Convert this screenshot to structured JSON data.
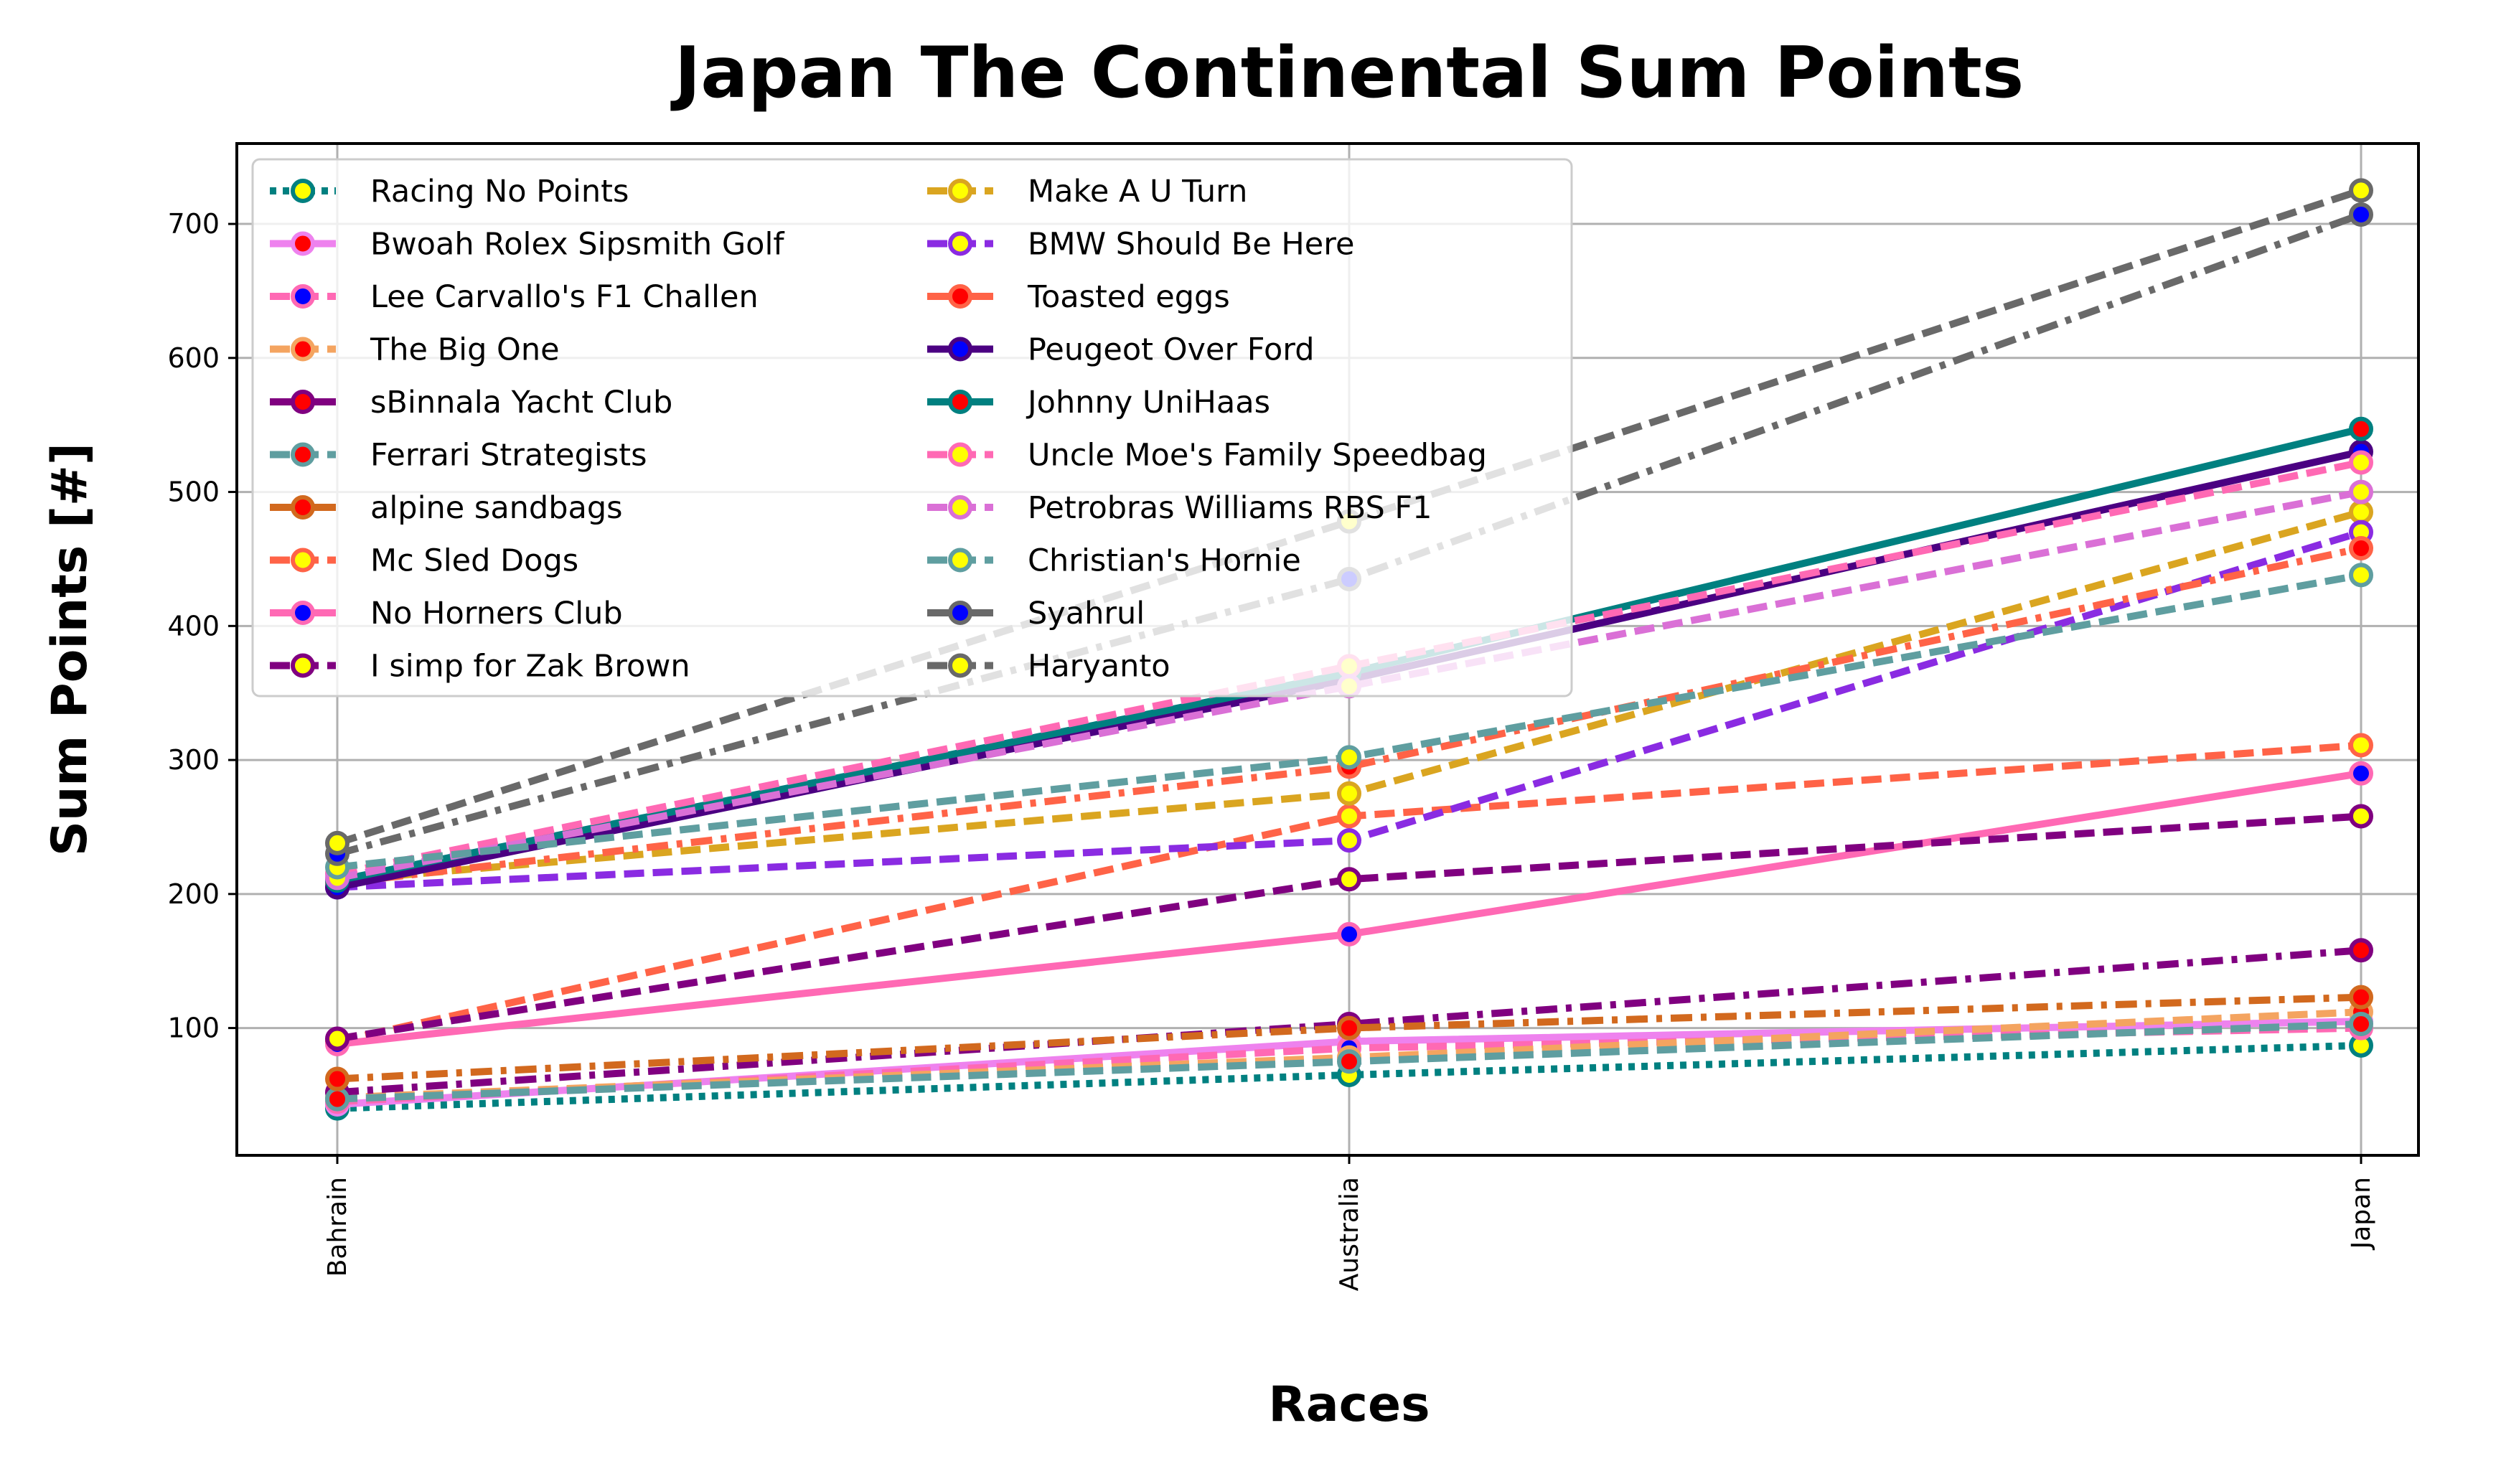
{
  "chart_data": {
    "type": "line",
    "title": "Japan The Continental Sum Points",
    "xlabel": "Races",
    "ylabel": "Sum Points [#]",
    "categories": [
      "Bahrain",
      "Australia",
      "Japan"
    ],
    "ylim": [
      5,
      760
    ],
    "yticks": [
      100,
      200,
      300,
      400,
      500,
      600,
      700
    ],
    "grid": true,
    "legend_position": "upper-left",
    "legend_columns": 2,
    "series": [
      {
        "name": "Racing No Points",
        "values": [
          40,
          65,
          87
        ],
        "color": "#008080",
        "dash": "dotted",
        "marker_face": "#ffff00",
        "marker_edge": "#008080"
      },
      {
        "name": "Bwoah Rolex Sipsmith Golf",
        "values": [
          43,
          90,
          105
        ],
        "color": "#ee82ee",
        "dash": "solid",
        "marker_face": "#ff0000",
        "marker_edge": "#ee82ee"
      },
      {
        "name": "Lee Carvallo's F1 Challen",
        "values": [
          45,
          85,
          100
        ],
        "color": "#ff69b4",
        "dash": "dashed",
        "marker_face": "#0000ff",
        "marker_edge": "#ff69b4"
      },
      {
        "name": "The Big One",
        "values": [
          48,
          78,
          112
        ],
        "color": "#f4a460",
        "dash": "dashed",
        "marker_face": "#ff0000",
        "marker_edge": "#f4a460"
      },
      {
        "name": "sBinnala Yacht Club",
        "values": [
          52,
          103,
          158
        ],
        "color": "#800080",
        "dash": "dashdot",
        "marker_face": "#ff0000",
        "marker_edge": "#800080"
      },
      {
        "name": "Ferrari Strategists",
        "values": [
          47,
          75,
          103
        ],
        "color": "#5f9ea0",
        "dash": "dashed",
        "marker_face": "#ff0000",
        "marker_edge": "#5f9ea0"
      },
      {
        "name": "alpine sandbags",
        "values": [
          62,
          100,
          123
        ],
        "color": "#d2691e",
        "dash": "dashdot",
        "marker_face": "#ff0000",
        "marker_edge": "#d2691e"
      },
      {
        "name": "Mc Sled Dogs",
        "values": [
          90,
          258,
          311
        ],
        "color": "#ff6347",
        "dash": "dashed",
        "marker_face": "#ffff00",
        "marker_edge": "#ff6347"
      },
      {
        "name": "No Horners Club",
        "values": [
          88,
          170,
          290
        ],
        "color": "#ff69b4",
        "dash": "solid",
        "marker_face": "#0000ff",
        "marker_edge": "#ff69b4"
      },
      {
        "name": "I simp for Zak Brown",
        "values": [
          92,
          211,
          258
        ],
        "color": "#800080",
        "dash": "dashed",
        "marker_face": "#ffff00",
        "marker_edge": "#800080"
      },
      {
        "name": "Make A U Turn",
        "values": [
          210,
          275,
          485
        ],
        "color": "#daa520",
        "dash": "dashed",
        "marker_face": "#ffff00",
        "marker_edge": "#daa520"
      },
      {
        "name": "BMW Should Be Here",
        "values": [
          205,
          240,
          470
        ],
        "color": "#8a2be2",
        "dash": "dashed",
        "marker_face": "#ffff00",
        "marker_edge": "#8a2be2"
      },
      {
        "name": "Toasted eggs",
        "values": [
          208,
          295,
          458
        ],
        "color": "#ff6347",
        "dash": "dashdot",
        "marker_face": "#ff0000",
        "marker_edge": "#ff6347"
      },
      {
        "name": "Peugeot Over Ford",
        "values": [
          205,
          360,
          530
        ],
        "color": "#4b0082",
        "dash": "solid",
        "marker_face": "#0000ff",
        "marker_edge": "#4b0082"
      },
      {
        "name": "Johnny UniHaas",
        "values": [
          210,
          365,
          547
        ],
        "color": "#008080",
        "dash": "solid",
        "marker_face": "#ff0000",
        "marker_edge": "#008080"
      },
      {
        "name": "Uncle Moe's Family Speedbag",
        "values": [
          215,
          370,
          522
        ],
        "color": "#ff69b4",
        "dash": "dashed",
        "marker_face": "#ffff00",
        "marker_edge": "#ff69b4"
      },
      {
        "name": "Petrobras Williams RBS F1",
        "values": [
          212,
          355,
          500
        ],
        "color": "#da70d6",
        "dash": "dashed",
        "marker_face": "#ffff00",
        "marker_edge": "#da70d6"
      },
      {
        "name": "Christian's Hornie",
        "values": [
          220,
          302,
          438
        ],
        "color": "#5f9ea0",
        "dash": "dashed",
        "marker_face": "#ffff00",
        "marker_edge": "#5f9ea0"
      },
      {
        "name": "Syahrul",
        "values": [
          230,
          435,
          707
        ],
        "color": "#696969",
        "dash": "dashdot",
        "marker_face": "#0000ff",
        "marker_edge": "#696969"
      },
      {
        "name": "Haryanto",
        "values": [
          238,
          478,
          725
        ],
        "color": "#696969",
        "dash": "dashed",
        "marker_face": "#ffff00",
        "marker_edge": "#696969"
      }
    ]
  }
}
